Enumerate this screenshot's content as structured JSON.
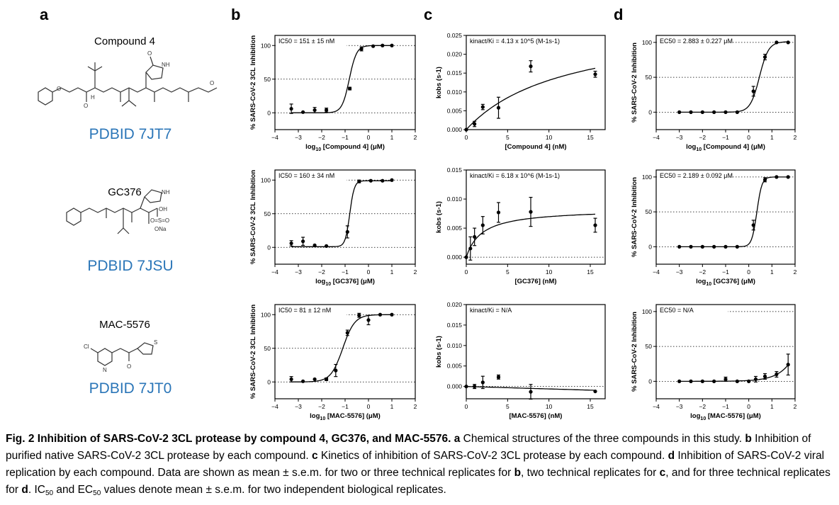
{
  "panels": {
    "a": "a",
    "b": "b",
    "c": "c",
    "d": "d"
  },
  "compounds": [
    {
      "name": "Compound 4",
      "pdb": "PDBID 7JT7"
    },
    {
      "name": "GC376",
      "pdb": "PDBID 7JSU"
    },
    {
      "name": "MAC-5576",
      "pdb": "PDBID 7JT0"
    }
  ],
  "structure_labels": {
    "nh": "NH",
    "h": "H",
    "n": "N",
    "o": "O",
    "oh": "OH",
    "so3": "O=S=O",
    "ona": "ONa",
    "cl": "Cl",
    "s": "S"
  },
  "chart_data": [
    {
      "type": "scatter",
      "panel": "b",
      "row": 0,
      "ylabel": "% SARS-CoV-2 3CL Inhibition",
      "xlabel_sub": "10",
      "xlabel_pre": "log",
      "xlabel_post": " [Compound 4] (μM)",
      "annotation": "IC50 = 151 ± 15 nM",
      "xlim": [
        -4,
        2
      ],
      "ylim": [
        -25,
        115
      ],
      "xticks": [
        -4,
        -3,
        -2,
        -1,
        0,
        1,
        2
      ],
      "yticks": [
        0,
        50,
        100
      ],
      "dotted_y": [
        0,
        50,
        100
      ],
      "fit": {
        "kind": "hill",
        "bottom": 0,
        "top": 100,
        "x50": -0.82,
        "slope": 2.8,
        "xmin": -3.3,
        "xmax": 1.0
      },
      "points": [
        {
          "x": -3.3,
          "y": 6,
          "e": 7
        },
        {
          "x": -2.8,
          "y": 1,
          "e": 0
        },
        {
          "x": -2.3,
          "y": 4,
          "e": 4
        },
        {
          "x": -1.8,
          "y": 4,
          "e": 3
        },
        {
          "x": -0.8,
          "y": 36,
          "e": 2
        },
        {
          "x": -0.3,
          "y": 95,
          "e": 3
        },
        {
          "x": 0.2,
          "y": 99,
          "e": 0
        },
        {
          "x": 0.6,
          "y": 100,
          "e": 0
        },
        {
          "x": 1.0,
          "y": 100,
          "e": 0
        }
      ]
    },
    {
      "type": "scatter",
      "panel": "b",
      "row": 1,
      "ylabel": "% SARS-CoV-2 3CL Inhibition",
      "xlabel_sub": "10",
      "xlabel_pre": "log",
      "xlabel_post": " [GC376] (μM)",
      "annotation": "IC50 = 160 ± 34 nM",
      "xlim": [
        -4,
        2
      ],
      "ylim": [
        -25,
        115
      ],
      "xticks": [
        -4,
        -3,
        -2,
        -1,
        0,
        1,
        2
      ],
      "yticks": [
        0,
        50,
        100
      ],
      "dotted_y": [
        0,
        50,
        100
      ],
      "fit": {
        "kind": "hill",
        "bottom": 1,
        "top": 99,
        "x50": -0.8,
        "slope": 4.5,
        "xmin": -3.3,
        "xmax": 1.0
      },
      "points": [
        {
          "x": -3.3,
          "y": 6,
          "e": 4
        },
        {
          "x": -2.8,
          "y": 9,
          "e": 6
        },
        {
          "x": -2.3,
          "y": 3,
          "e": 0
        },
        {
          "x": -1.8,
          "y": 2,
          "e": 0
        },
        {
          "x": -0.9,
          "y": 23,
          "e": 9
        },
        {
          "x": -0.4,
          "y": 98,
          "e": 2
        },
        {
          "x": 0.1,
          "y": 99,
          "e": 0
        },
        {
          "x": 0.6,
          "y": 99,
          "e": 0
        },
        {
          "x": 1.0,
          "y": 100,
          "e": 0
        }
      ]
    },
    {
      "type": "scatter",
      "panel": "b",
      "row": 2,
      "ylabel": "% SARS-CoV-2 3CL Inhibition",
      "xlabel_sub": "10",
      "xlabel_pre": "log",
      "xlabel_post": " [MAC-5576] (μM)",
      "annotation": "IC50 = 81 ± 12 nM",
      "xlim": [
        -4,
        2
      ],
      "ylim": [
        -25,
        115
      ],
      "xticks": [
        -4,
        -3,
        -2,
        -1,
        0,
        1,
        2
      ],
      "yticks": [
        0,
        50,
        100
      ],
      "dotted_y": [
        0,
        50,
        100
      ],
      "fit": {
        "kind": "hill",
        "bottom": 0,
        "top": 100,
        "x50": -1.1,
        "slope": 1.7,
        "xmin": -3.3,
        "xmax": 1.0
      },
      "points": [
        {
          "x": -3.3,
          "y": 4,
          "e": 4
        },
        {
          "x": -2.8,
          "y": 1,
          "e": 0
        },
        {
          "x": -2.3,
          "y": 4,
          "e": 0
        },
        {
          "x": -1.8,
          "y": 4,
          "e": 2
        },
        {
          "x": -1.4,
          "y": 17,
          "e": 9
        },
        {
          "x": -0.9,
          "y": 73,
          "e": 4
        },
        {
          "x": -0.4,
          "y": 99,
          "e": 3
        },
        {
          "x": 0.0,
          "y": 92,
          "e": 7
        },
        {
          "x": 0.5,
          "y": 100,
          "e": 0
        },
        {
          "x": 1.0,
          "y": 100,
          "e": 0
        }
      ]
    },
    {
      "type": "scatter",
      "panel": "c",
      "row": 0,
      "ylabel": "kobs (s-1)",
      "xlabel": "[Compound 4] (nM)",
      "annotation": "kinact/Ki = 4.13 x 10^5 (M-1s-1)",
      "xlim": [
        0,
        16.8
      ],
      "ylim": [
        0,
        0.025
      ],
      "xticks": [
        0,
        5,
        10,
        15
      ],
      "yticks": [
        0.0,
        0.005,
        0.01,
        0.015,
        0.02,
        0.025
      ],
      "ytick_labels": [
        "0.000",
        "0.005",
        "0.010",
        "0.015",
        "0.020",
        "0.025"
      ],
      "dotted_y": [],
      "fit": {
        "kind": "mm",
        "vmax": 0.0288,
        "km": 12.0,
        "xmin": 0,
        "xmax": 15.6
      },
      "points": [
        {
          "x": 0.0,
          "y": 0.0,
          "e": 0
        },
        {
          "x": 1.0,
          "y": 0.0015,
          "e": 0.0007
        },
        {
          "x": 2.0,
          "y": 0.006,
          "e": 0.0007
        },
        {
          "x": 3.9,
          "y": 0.0058,
          "e": 0.0028
        },
        {
          "x": 7.8,
          "y": 0.0168,
          "e": 0.0015
        },
        {
          "x": 15.6,
          "y": 0.0147,
          "e": 0.0008
        }
      ]
    },
    {
      "type": "scatter",
      "panel": "c",
      "row": 1,
      "ylabel": "kobs (s-1)",
      "xlabel": "[GC376] (nM)",
      "annotation": "kinact/Ki = 6.18 x 10^6 (M-1s-1)",
      "xlim": [
        0,
        16.8
      ],
      "ylim": [
        -0.0012,
        0.015
      ],
      "xticks": [
        0,
        5,
        10,
        15
      ],
      "yticks": [
        0.0,
        0.005,
        0.01,
        0.015
      ],
      "ytick_labels": [
        "0.000",
        "0.005",
        "0.010",
        "0.015"
      ],
      "dotted_y": [
        0
      ],
      "fit": {
        "kind": "mm",
        "vmax": 0.0083,
        "km": 1.9,
        "xmin": 0,
        "xmax": 15.6
      },
      "points": [
        {
          "x": 0.0,
          "y": 0.0,
          "e": 0
        },
        {
          "x": 0.5,
          "y": 0.0015,
          "e": 0.002
        },
        {
          "x": 1.0,
          "y": 0.0035,
          "e": 0.0015
        },
        {
          "x": 2.0,
          "y": 0.0055,
          "e": 0.0015
        },
        {
          "x": 3.9,
          "y": 0.0077,
          "e": 0.0017
        },
        {
          "x": 7.8,
          "y": 0.0078,
          "e": 0.0025
        },
        {
          "x": 15.6,
          "y": 0.0055,
          "e": 0.0012
        }
      ]
    },
    {
      "type": "scatter",
      "panel": "c",
      "row": 2,
      "ylabel": "kobs (s-1)",
      "xlabel": "[MAC-5576] (nM)",
      "annotation": "kinact/Ki = N/A",
      "xlim": [
        0,
        16.8
      ],
      "ylim": [
        -0.003,
        0.02
      ],
      "xticks": [
        0,
        5,
        10,
        15
      ],
      "yticks": [
        0.0,
        0.005,
        0.01,
        0.015,
        0.02
      ],
      "ytick_labels": [
        "0.000",
        "0.005",
        "0.010",
        "0.015",
        "0.020"
      ],
      "dotted_y": [
        0
      ],
      "fit": {
        "kind": "line",
        "a": 0.0,
        "b": -6e-05,
        "xmin": 0,
        "xmax": 15.6
      },
      "points": [
        {
          "x": 0.0,
          "y": 0.0,
          "e": 0
        },
        {
          "x": 1.0,
          "y": 0.0,
          "e": 0.0005
        },
        {
          "x": 2.0,
          "y": 0.001,
          "e": 0.0015
        },
        {
          "x": 3.9,
          "y": 0.0023,
          "e": 0.0005
        },
        {
          "x": 7.8,
          "y": -0.0013,
          "e": 0.0018
        },
        {
          "x": 15.6,
          "y": -0.0012,
          "e": 0
        }
      ]
    },
    {
      "type": "scatter",
      "panel": "d",
      "row": 0,
      "ylabel": "% SARS-CoV-2 Inhibition",
      "xlabel_sub": "10",
      "xlabel_pre": "log",
      "xlabel_post": " [Compound 4] (μM)",
      "annotation": "EC50 = 2.883 ± 0.227 μM",
      "xlim": [
        -4,
        2
      ],
      "ylim": [
        -25,
        110
      ],
      "xticks": [
        -4,
        -3,
        -2,
        -1,
        0,
        1,
        2
      ],
      "yticks": [
        0,
        50,
        100
      ],
      "dotted_y": [
        0,
        50,
        100
      ],
      "fit": {
        "kind": "hill",
        "bottom": 0,
        "top": 101,
        "x50": 0.46,
        "slope": 2.2,
        "xmin": -3.0,
        "xmax": 1.7
      },
      "points": [
        {
          "x": -3.0,
          "y": 0,
          "e": 0
        },
        {
          "x": -2.5,
          "y": 0,
          "e": 0
        },
        {
          "x": -2.0,
          "y": 0,
          "e": 0
        },
        {
          "x": -1.5,
          "y": 0,
          "e": 0
        },
        {
          "x": -1.0,
          "y": 0,
          "e": 0
        },
        {
          "x": -0.5,
          "y": 0,
          "e": 0
        },
        {
          "x": 0.2,
          "y": 30,
          "e": 7
        },
        {
          "x": 0.7,
          "y": 79,
          "e": 4
        },
        {
          "x": 1.2,
          "y": 100,
          "e": 0
        },
        {
          "x": 1.7,
          "y": 100,
          "e": 0
        }
      ]
    },
    {
      "type": "scatter",
      "panel": "d",
      "row": 1,
      "ylabel": "% SARS-CoV-2 Inhibition",
      "xlabel_sub": "10",
      "xlabel_pre": "log",
      "xlabel_post": " [GC376] (μM)",
      "annotation": "EC50 = 2.189 ± 0.092 μM",
      "xlim": [
        -4,
        2
      ],
      "ylim": [
        -25,
        110
      ],
      "xticks": [
        -4,
        -3,
        -2,
        -1,
        0,
        1,
        2
      ],
      "yticks": [
        0,
        50,
        100
      ],
      "dotted_y": [
        0,
        50,
        100
      ],
      "fit": {
        "kind": "hill",
        "bottom": 0,
        "top": 100,
        "x50": 0.35,
        "slope": 4.0,
        "xmin": -3.0,
        "xmax": 1.7
      },
      "points": [
        {
          "x": -3.0,
          "y": 0,
          "e": 0
        },
        {
          "x": -2.5,
          "y": 0,
          "e": 0
        },
        {
          "x": -2.0,
          "y": 0,
          "e": 0
        },
        {
          "x": -1.5,
          "y": 0,
          "e": 0
        },
        {
          "x": -1.0,
          "y": 0,
          "e": 0
        },
        {
          "x": -0.5,
          "y": 0,
          "e": 0
        },
        {
          "x": 0.2,
          "y": 31,
          "e": 7
        },
        {
          "x": 0.7,
          "y": 96,
          "e": 3
        },
        {
          "x": 1.2,
          "y": 100,
          "e": 0
        },
        {
          "x": 1.7,
          "y": 100,
          "e": 0
        }
      ]
    },
    {
      "type": "scatter",
      "panel": "d",
      "row": 2,
      "ylabel": "% SARS-CoV-2 Inhibition",
      "xlabel_sub": "10",
      "xlabel_pre": "log",
      "xlabel_post": " [MAC-5576] (μM)",
      "annotation": "EC50 = N/A",
      "xlim": [
        -4,
        2
      ],
      "ylim": [
        -25,
        110
      ],
      "xticks": [
        -4,
        -3,
        -2,
        -1,
        0,
        1,
        2
      ],
      "yticks": [
        0,
        50,
        100
      ],
      "dotted_y": [
        0,
        50,
        100
      ],
      "fit": {
        "kind": "exp",
        "a": 1.2,
        "b": 1.75,
        "xmin": -3.0,
        "xmax": 1.7
      },
      "points": [
        {
          "x": -3.0,
          "y": 0,
          "e": 0
        },
        {
          "x": -2.5,
          "y": 0,
          "e": 0
        },
        {
          "x": -2.0,
          "y": 0,
          "e": 0
        },
        {
          "x": -1.5,
          "y": 0,
          "e": 0
        },
        {
          "x": -1.0,
          "y": 3,
          "e": 3
        },
        {
          "x": -0.5,
          "y": 0,
          "e": 0
        },
        {
          "x": 0.0,
          "y": 0,
          "e": 0
        },
        {
          "x": 0.3,
          "y": 3,
          "e": 4
        },
        {
          "x": 0.7,
          "y": 7,
          "e": 4
        },
        {
          "x": 1.2,
          "y": 10,
          "e": 4
        },
        {
          "x": 1.7,
          "y": 24,
          "e": 15
        }
      ]
    }
  ],
  "caption": {
    "title": "Fig. 2 Inhibition of SARS-CoV-2 3CL protease by compound 4, GC376, and MAC-5576.",
    "a_label": "a",
    "a_text": " Chemical structures of the three compounds in this study.",
    "b_label": "b",
    "b_text": " Inhibition of purified native SARS-CoV-2 3CL protease by each compound.",
    "c_label": "c",
    "c_text": " Kinetics of inhibition of SARS-CoV-2 3CL protease by each compound.",
    "d_label": "d",
    "d_text": " Inhibition of SARS-CoV-2 viral replication by each compound. Data are shown as mean ± s.e.m. for two or three technical replicates for ",
    "d_b": "b",
    "d_text2": ", two technical replicates for ",
    "d_c": "c",
    "d_text3": ", and for three technical replicates for ",
    "d_d": "d",
    "d_text4": ". IC",
    "ic_sub": "50",
    "d_text5": " and EC",
    "ec_sub": "50",
    "d_text6": " values denote mean ± s.e.m. for two independent biological replicates."
  }
}
